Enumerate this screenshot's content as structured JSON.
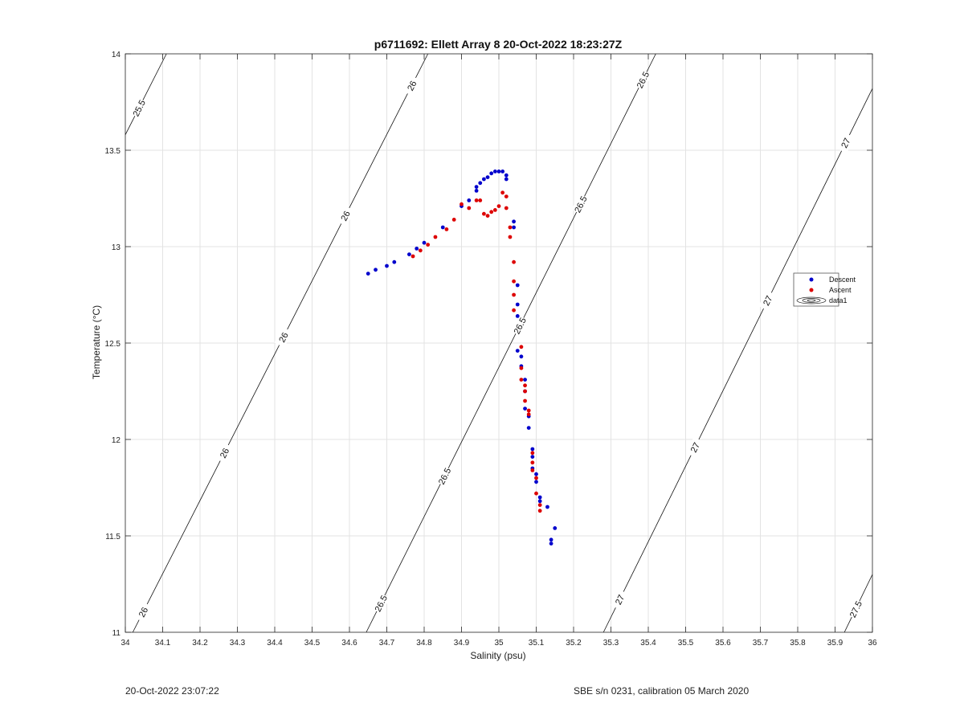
{
  "chart_data": {
    "type": "scatter",
    "title": "p6711692: Ellett Array 8 20-Oct-2022 18:23:27Z",
    "xlabel": "Salinity (psu)",
    "ylabel": "Temperature (°C)",
    "xlim": [
      34,
      36
    ],
    "ylim": [
      11,
      14
    ],
    "x_ticks": [
      34,
      34.1,
      34.2,
      34.3,
      34.4,
      34.5,
      34.6,
      34.7,
      34.8,
      34.9,
      35,
      35.1,
      35.2,
      35.3,
      35.4,
      35.5,
      35.6,
      35.7,
      35.8,
      35.9,
      36
    ],
    "y_ticks": [
      11,
      11.5,
      12,
      12.5,
      13,
      13.5,
      14
    ],
    "grid": true,
    "legend_position": "right",
    "series": [
      {
        "name": "Descent",
        "color": "#0000cc",
        "points": [
          [
            34.65,
            12.86
          ],
          [
            34.67,
            12.88
          ],
          [
            34.7,
            12.9
          ],
          [
            34.72,
            12.92
          ],
          [
            34.76,
            12.96
          ],
          [
            34.78,
            12.99
          ],
          [
            34.8,
            13.02
          ],
          [
            34.85,
            13.1
          ],
          [
            34.9,
            13.21
          ],
          [
            34.92,
            13.24
          ],
          [
            34.94,
            13.29
          ],
          [
            34.94,
            13.31
          ],
          [
            34.95,
            13.33
          ],
          [
            34.96,
            13.35
          ],
          [
            34.97,
            13.36
          ],
          [
            34.98,
            13.38
          ],
          [
            34.99,
            13.39
          ],
          [
            35.0,
            13.39
          ],
          [
            35.01,
            13.39
          ],
          [
            35.02,
            13.37
          ],
          [
            35.02,
            13.35
          ],
          [
            35.04,
            13.1
          ],
          [
            35.04,
            13.13
          ],
          [
            35.05,
            12.8
          ],
          [
            35.05,
            12.7
          ],
          [
            35.05,
            12.64
          ],
          [
            35.05,
            12.46
          ],
          [
            35.06,
            12.43
          ],
          [
            35.06,
            12.38
          ],
          [
            35.07,
            12.31
          ],
          [
            35.07,
            12.25
          ],
          [
            35.07,
            12.16
          ],
          [
            35.08,
            12.12
          ],
          [
            35.08,
            12.06
          ],
          [
            35.09,
            11.95
          ],
          [
            35.09,
            11.91
          ],
          [
            35.09,
            11.85
          ],
          [
            35.1,
            11.82
          ],
          [
            35.1,
            11.78
          ],
          [
            35.11,
            11.7
          ],
          [
            35.11,
            11.68
          ],
          [
            35.13,
            11.65
          ],
          [
            35.15,
            11.54
          ],
          [
            35.14,
            11.48
          ],
          [
            35.14,
            11.46
          ]
        ]
      },
      {
        "name": "Ascent",
        "color": "#dd0000",
        "points": [
          [
            34.77,
            12.95
          ],
          [
            34.79,
            12.98
          ],
          [
            34.81,
            13.01
          ],
          [
            34.83,
            13.05
          ],
          [
            34.86,
            13.09
          ],
          [
            34.88,
            13.14
          ],
          [
            34.9,
            13.22
          ],
          [
            34.92,
            13.2
          ],
          [
            34.94,
            13.24
          ],
          [
            34.95,
            13.24
          ],
          [
            34.96,
            13.17
          ],
          [
            34.97,
            13.16
          ],
          [
            34.98,
            13.18
          ],
          [
            34.99,
            13.19
          ],
          [
            35.0,
            13.21
          ],
          [
            35.01,
            13.28
          ],
          [
            35.02,
            13.26
          ],
          [
            35.02,
            13.2
          ],
          [
            35.03,
            13.1
          ],
          [
            35.03,
            13.05
          ],
          [
            35.04,
            12.92
          ],
          [
            35.04,
            12.82
          ],
          [
            35.04,
            12.75
          ],
          [
            35.04,
            12.67
          ],
          [
            35.06,
            12.48
          ],
          [
            35.06,
            12.37
          ],
          [
            35.06,
            12.31
          ],
          [
            35.07,
            12.28
          ],
          [
            35.07,
            12.25
          ],
          [
            35.07,
            12.2
          ],
          [
            35.08,
            12.15
          ],
          [
            35.08,
            12.13
          ],
          [
            35.09,
            11.93
          ],
          [
            35.09,
            11.88
          ],
          [
            35.09,
            11.84
          ],
          [
            35.1,
            11.8
          ],
          [
            35.1,
            11.72
          ],
          [
            35.11,
            11.66
          ],
          [
            35.11,
            11.63
          ]
        ]
      }
    ],
    "contour_series_name": "data1",
    "contour_labels": [
      "25.5",
      "26",
      "26",
      "26",
      "26",
      "26",
      "26.5",
      "26.5",
      "26.5",
      "26.5",
      "26.5",
      "27",
      "27",
      "27",
      "27",
      "27.5"
    ],
    "contour_lines": [
      {
        "level": 25.5,
        "x0": 34.0,
        "y0": 13.58,
        "x1": 34.11,
        "y1": 14.0
      },
      {
        "level": 26.0,
        "x0": 34.02,
        "y0": 11.0,
        "x1": 34.81,
        "y1": 14.0
      },
      {
        "level": 26.5,
        "x0": 34.645,
        "y0": 11.0,
        "x1": 35.42,
        "y1": 14.0
      },
      {
        "level": 27.0,
        "x0": 35.28,
        "y0": 11.0,
        "x1": 36.0,
        "y1": 13.82
      },
      {
        "level": 27.5,
        "x0": 35.925,
        "y0": 11.0,
        "x1": 36.0,
        "y1": 11.3
      }
    ]
  },
  "footer": {
    "timestamp": "20-Oct-2022 23:07:22",
    "calibration": "SBE s/n 0231, calibration 05 March 2020"
  }
}
